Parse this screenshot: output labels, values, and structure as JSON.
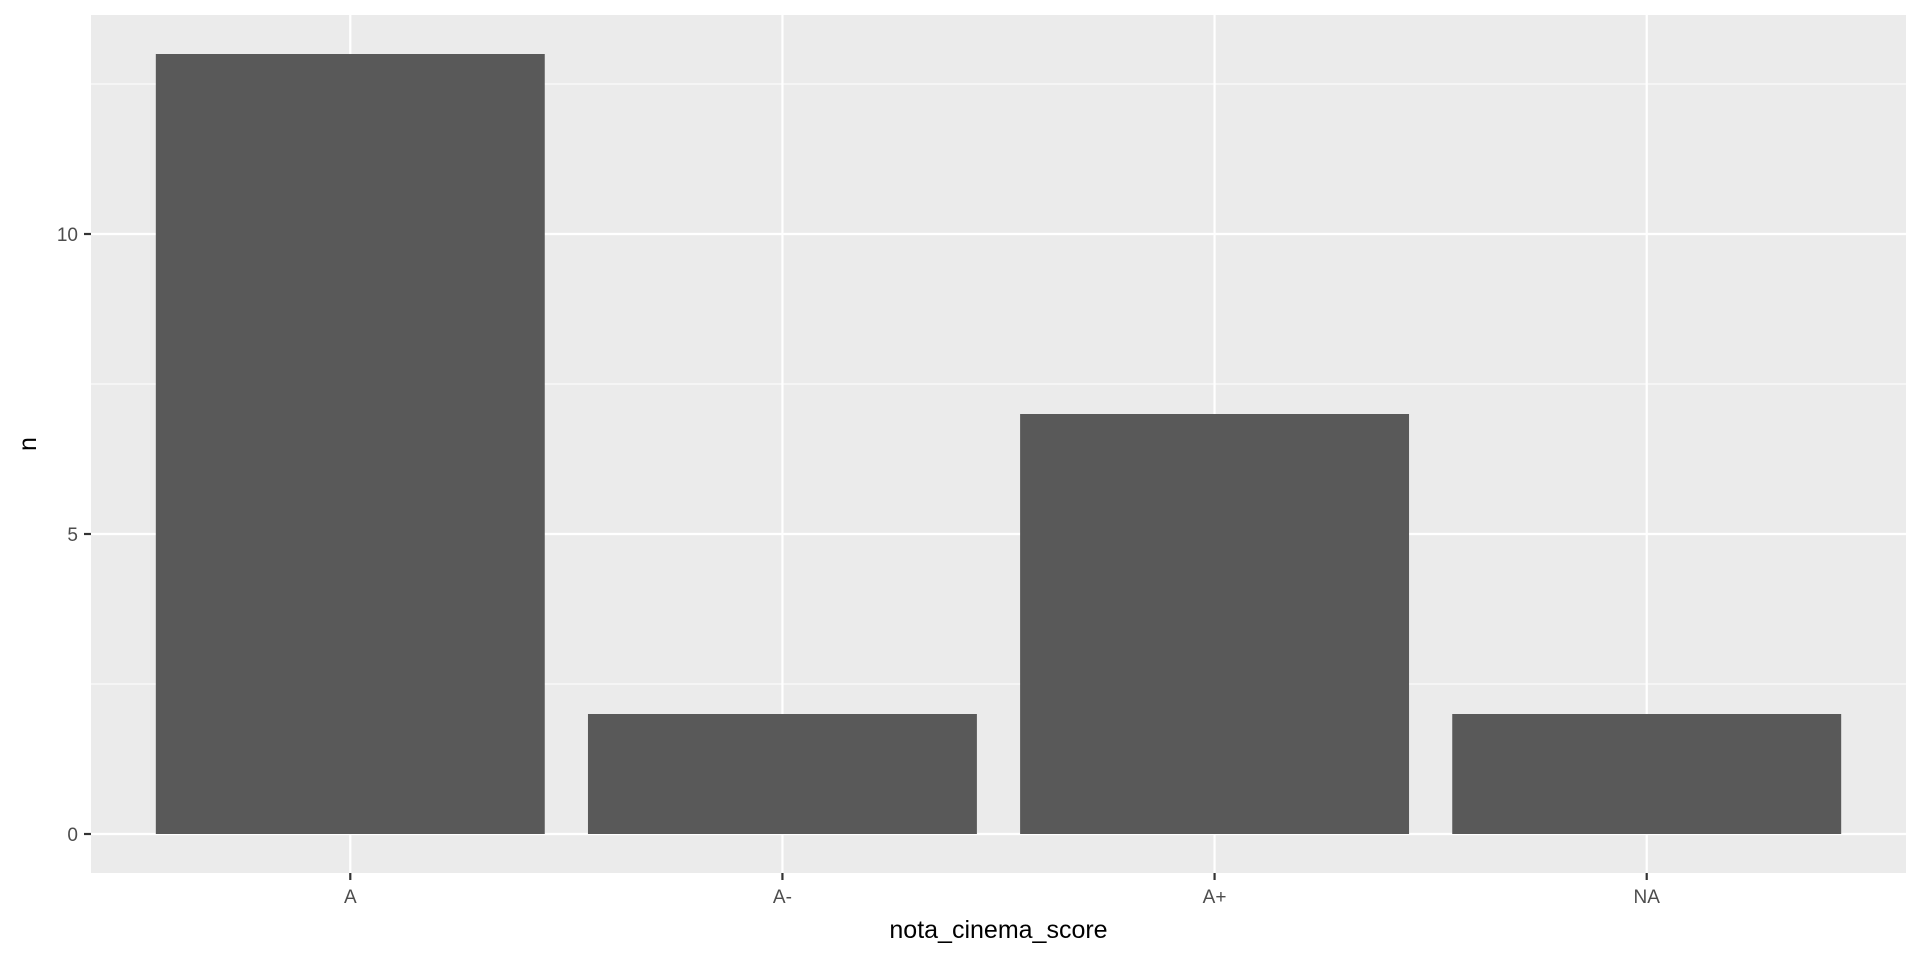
{
  "chart_data": {
    "type": "bar",
    "categories": [
      "A",
      "A-",
      "A+",
      "NA"
    ],
    "values": [
      13,
      2,
      7,
      2
    ],
    "title": "",
    "xlabel": "nota_cinema_score",
    "ylabel": "n",
    "ylim": [
      -0.65,
      13.65
    ],
    "yticks": [
      0,
      5,
      10
    ],
    "grid": true,
    "colors": {
      "panel_background": "#ebebeb",
      "grid_major": "#ffffff",
      "grid_minor": "#ffffff",
      "bar_fill": "#595959",
      "tick_mark": "#333333",
      "tick_text": "#4d4d4d"
    }
  }
}
